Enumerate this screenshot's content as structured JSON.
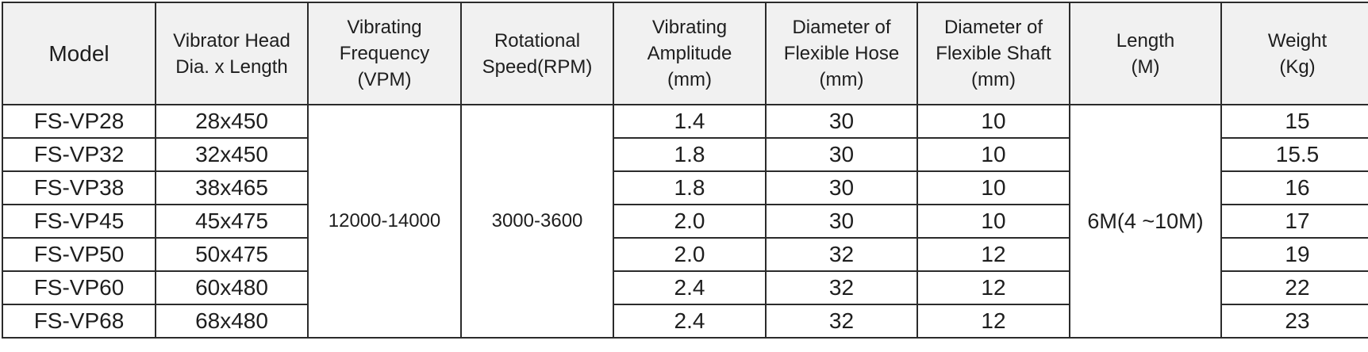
{
  "table": {
    "headers": [
      {
        "lines": [
          "Model"
        ]
      },
      {
        "lines": [
          "Vibrator Head",
          "Dia. x Length"
        ]
      },
      {
        "lines": [
          "Vibrating",
          "Frequency",
          "(VPM)"
        ]
      },
      {
        "lines": [
          "Rotational",
          "Speed(RPM)"
        ]
      },
      {
        "lines": [
          "Vibrating",
          "Amplitude",
          "(mm)"
        ]
      },
      {
        "lines": [
          "Diameter of",
          "Flexible Hose",
          "(mm)"
        ]
      },
      {
        "lines": [
          "Diameter of",
          "Flexible Shaft",
          "(mm)"
        ]
      },
      {
        "lines": [
          "Length",
          "(M)"
        ]
      },
      {
        "lines": [
          "Weight",
          "(Kg)"
        ]
      }
    ],
    "rows": [
      {
        "model": "FS-VP28",
        "head": "28x450",
        "amplitude": "1.4",
        "hose": "30",
        "shaft": "10",
        "weight": "15"
      },
      {
        "model": "FS-VP32",
        "head": "32x450",
        "amplitude": "1.8",
        "hose": "30",
        "shaft": "10",
        "weight": "15.5"
      },
      {
        "model": "FS-VP38",
        "head": "38x465",
        "amplitude": "1.8",
        "hose": "30",
        "shaft": "10",
        "weight": "16"
      },
      {
        "model": "FS-VP45",
        "head": "45x475",
        "amplitude": "2.0",
        "hose": "30",
        "shaft": "10",
        "weight": "17"
      },
      {
        "model": "FS-VP50",
        "head": "50x475",
        "amplitude": "2.0",
        "hose": "32",
        "shaft": "12",
        "weight": "19"
      },
      {
        "model": "FS-VP60",
        "head": "60x480",
        "amplitude": "2.4",
        "hose": "32",
        "shaft": "12",
        "weight": "22"
      },
      {
        "model": "FS-VP68",
        "head": "68x480",
        "amplitude": "2.4",
        "hose": "32",
        "shaft": "12",
        "weight": "23"
      }
    ],
    "shared": {
      "frequency": "12000-14000",
      "speed": "3000-3600",
      "length": "6M(4 ~10M)"
    }
  }
}
